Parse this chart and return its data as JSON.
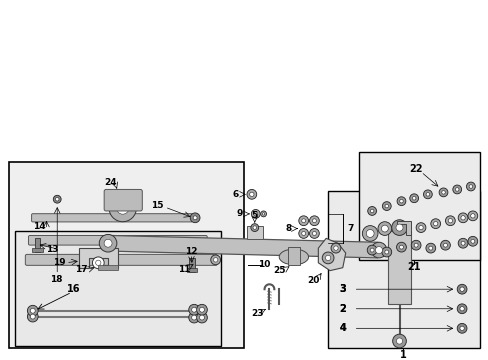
{
  "background": "#ffffff",
  "light_gray": "#ebebeb",
  "line_color": "#000000",
  "fig_width": 4.89,
  "fig_height": 3.6,
  "dpi": 100
}
